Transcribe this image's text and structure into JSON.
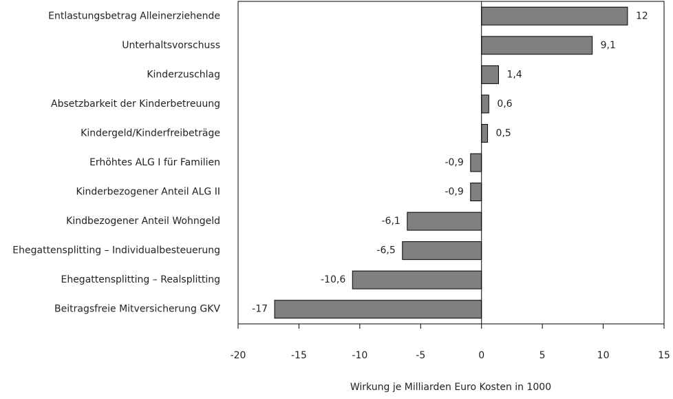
{
  "chart_data": {
    "type": "hbar",
    "categories": [
      "Entlastungsbetrag Alleinerziehende",
      "Unterhaltsvorschuss",
      "Kinderzuschlag",
      "Absetzbarkeit der Kinderbetreuung",
      "Kindergeld/Kinderfreibeträge",
      "Erhöhtes ALG I für Familien",
      "Kinderbezogener Anteil ALG II",
      "Kindbezogener Anteil Wohngeld",
      "Ehegattensplitting – Individualbesteuerung",
      "Ehegattensplitting – Realsplitting",
      "Beitragsfreie Mitversicherung GKV"
    ],
    "values": [
      12,
      9.1,
      1.4,
      0.6,
      0.5,
      -0.9,
      -0.9,
      -6.1,
      -6.5,
      -10.6,
      -17
    ],
    "value_labels": [
      "12",
      "9,1",
      "1,4",
      "0,6",
      "0,5",
      "-0,9",
      "-0,9",
      "-6,1",
      "-6,5",
      "-10,6",
      "-17"
    ],
    "color": "#808080",
    "x_label": "Wirkung je Milliarden Euro Kosten in 1000",
    "xlim": [
      -20,
      15
    ],
    "xticks": [
      -20,
      -15,
      -10,
      -5,
      0,
      5,
      10,
      15
    ]
  }
}
